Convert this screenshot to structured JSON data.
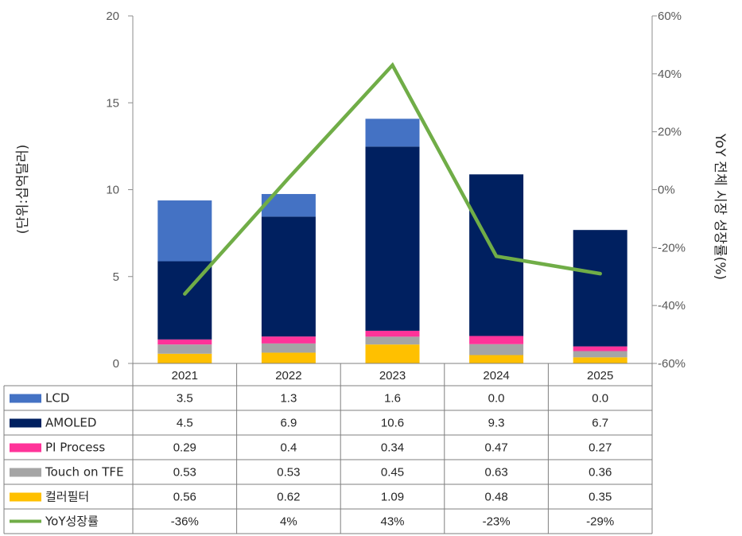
{
  "chart_data": {
    "type": "bar",
    "stacked": true,
    "categories": [
      "2021",
      "2022",
      "2023",
      "2024",
      "2025"
    ],
    "series": [
      {
        "name": "컬러필터",
        "color": "#FFC000",
        "values": [
          0.56,
          0.62,
          1.09,
          0.48,
          0.35
        ],
        "labels": [
          "0.56",
          "0.62",
          "1.09",
          "0.48",
          "0.35"
        ]
      },
      {
        "name": "Touch on TFE",
        "color": "#A5A5A5",
        "values": [
          0.53,
          0.53,
          0.45,
          0.63,
          0.36
        ],
        "labels": [
          "0.53",
          "0.53",
          "0.45",
          "0.63",
          "0.36"
        ]
      },
      {
        "name": "PI Process",
        "color": "#FF3399",
        "values": [
          0.29,
          0.4,
          0.34,
          0.47,
          0.27
        ],
        "labels": [
          "0.29",
          "0.4",
          "0.34",
          "0.47",
          "0.27"
        ]
      },
      {
        "name": "AMOLED",
        "color": "#002060",
        "values": [
          4.5,
          6.9,
          10.6,
          9.3,
          6.7
        ],
        "labels": [
          "4.5",
          "6.9",
          "10.6",
          "9.3",
          "6.7"
        ]
      },
      {
        "name": "LCD",
        "color": "#4472C4",
        "values": [
          3.5,
          1.3,
          1.6,
          0.0,
          0.0
        ],
        "labels": [
          "3.5",
          "1.3",
          "1.6",
          "0.0",
          "0.0"
        ]
      }
    ],
    "line_series": {
      "name": "YoY성장률",
      "color": "#70AD47",
      "values": [
        -36,
        4,
        43,
        -23,
        -29
      ],
      "labels": [
        "-36%",
        "4%",
        "43%",
        "-23%",
        "-29%"
      ]
    },
    "table_order": [
      "LCD",
      "AMOLED",
      "PI Process",
      "Touch on TFE",
      "컬러필터",
      "YoY성장률"
    ],
    "ylabel": "(단위:십억달러)",
    "y2label": "YoY 전체 시장 성장률(%)",
    "ylim": [
      0,
      20
    ],
    "y_ticks": [
      "0",
      "5",
      "10",
      "15",
      "20"
    ],
    "y2lim": [
      -60,
      60
    ],
    "y2_ticks": [
      "-60%",
      "-40%",
      "-20%",
      "0%",
      "20%",
      "40%",
      "60%"
    ],
    "grid": false,
    "legend": "data table below chart"
  }
}
